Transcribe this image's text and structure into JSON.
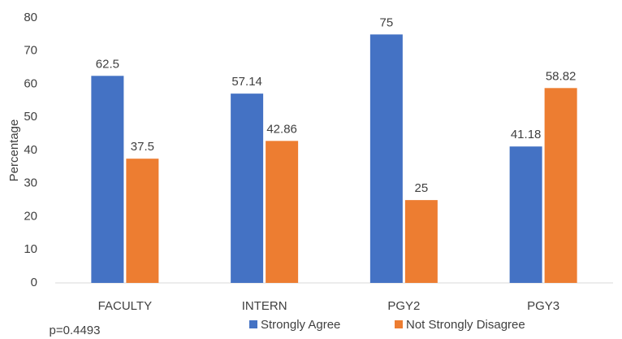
{
  "chart_data": {
    "type": "bar",
    "y_label": "Percentage",
    "annotation": "p=0.4493",
    "categories": [
      "FACULTY",
      "INTERN",
      "PGY2",
      "PGY3"
    ],
    "series": [
      {
        "name": "Strongly Agree",
        "color": "#4472c4",
        "values": [
          62.5,
          57.14,
          75,
          41.18
        ]
      },
      {
        "name": "Not Strongly Disagree",
        "color": "#ed7d31",
        "values": [
          37.5,
          42.86,
          25,
          58.82
        ]
      }
    ],
    "ylim": [
      0,
      80
    ],
    "yticks": [
      0,
      10,
      20,
      30,
      40,
      50,
      60,
      70,
      80
    ],
    "grid": false,
    "legend": "bottom"
  }
}
